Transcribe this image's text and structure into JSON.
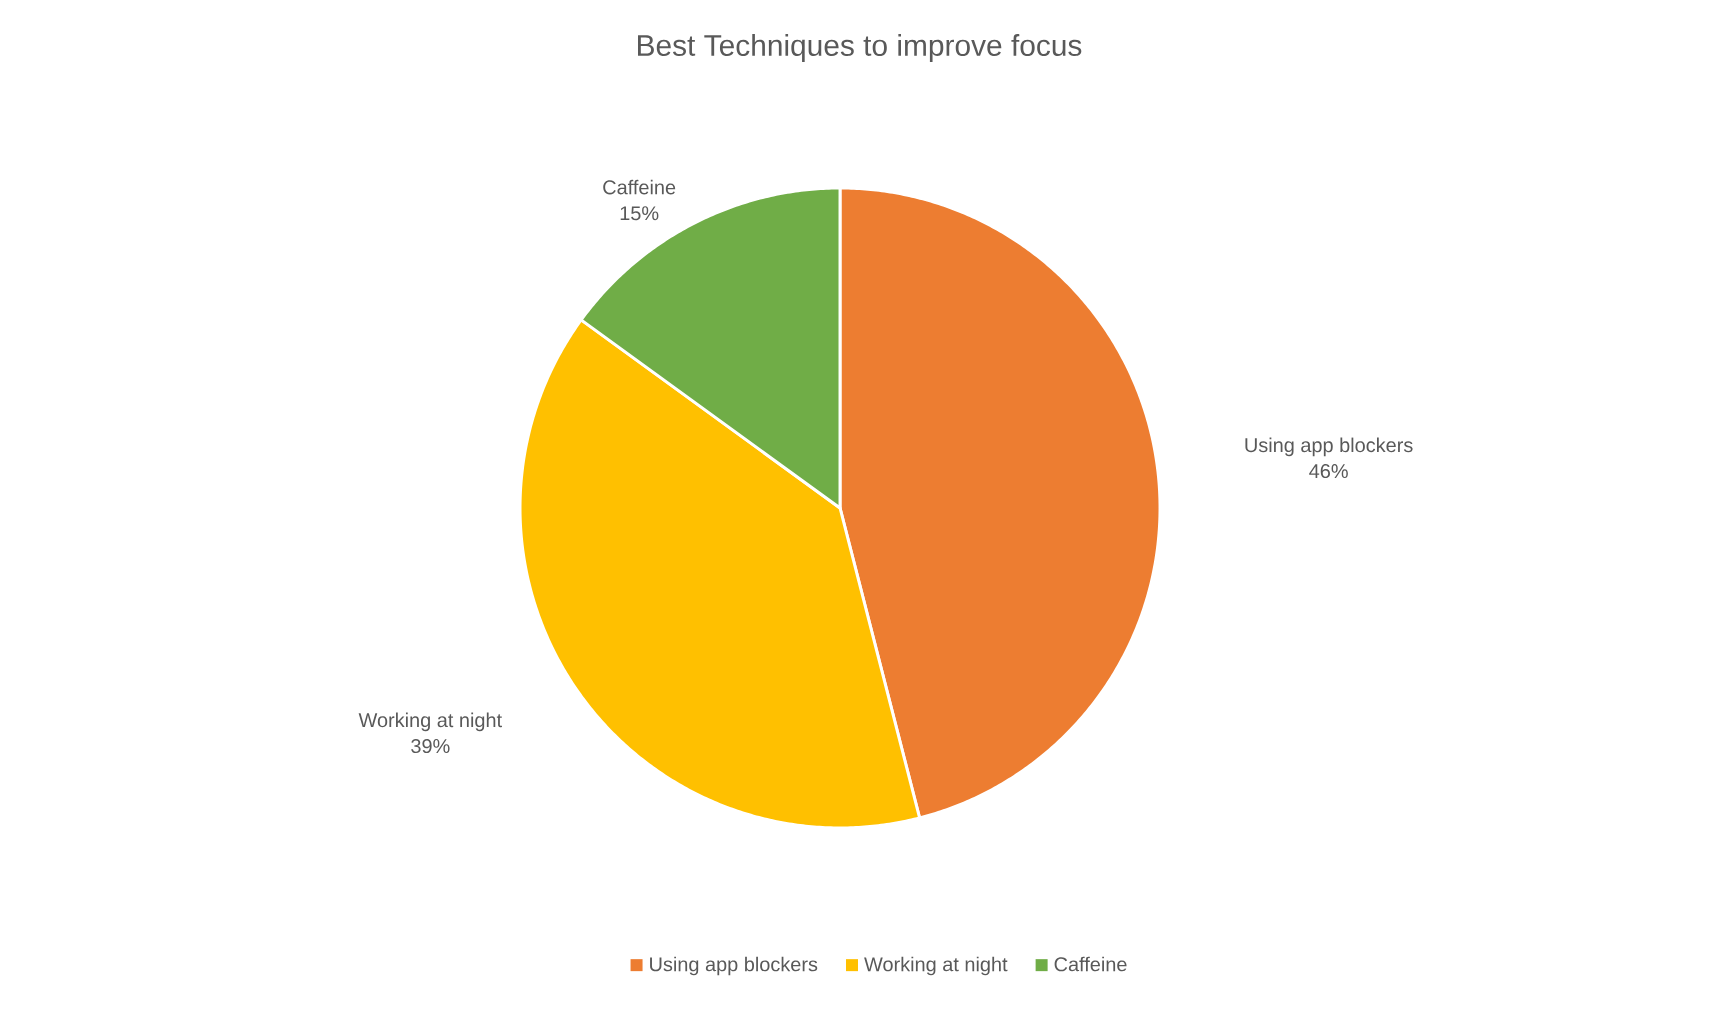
{
  "chart_data": {
    "type": "pie",
    "title": "Best Techniques to improve focus",
    "categories": [
      "Using app blockers",
      "Working at night",
      "Caffeine"
    ],
    "values": [
      46,
      39,
      15
    ],
    "colors": [
      "#ed7d31",
      "#ffc000",
      "#70ad47"
    ],
    "value_labels": [
      "46%",
      "39%",
      "15%"
    ],
    "legend": "bottom"
  }
}
